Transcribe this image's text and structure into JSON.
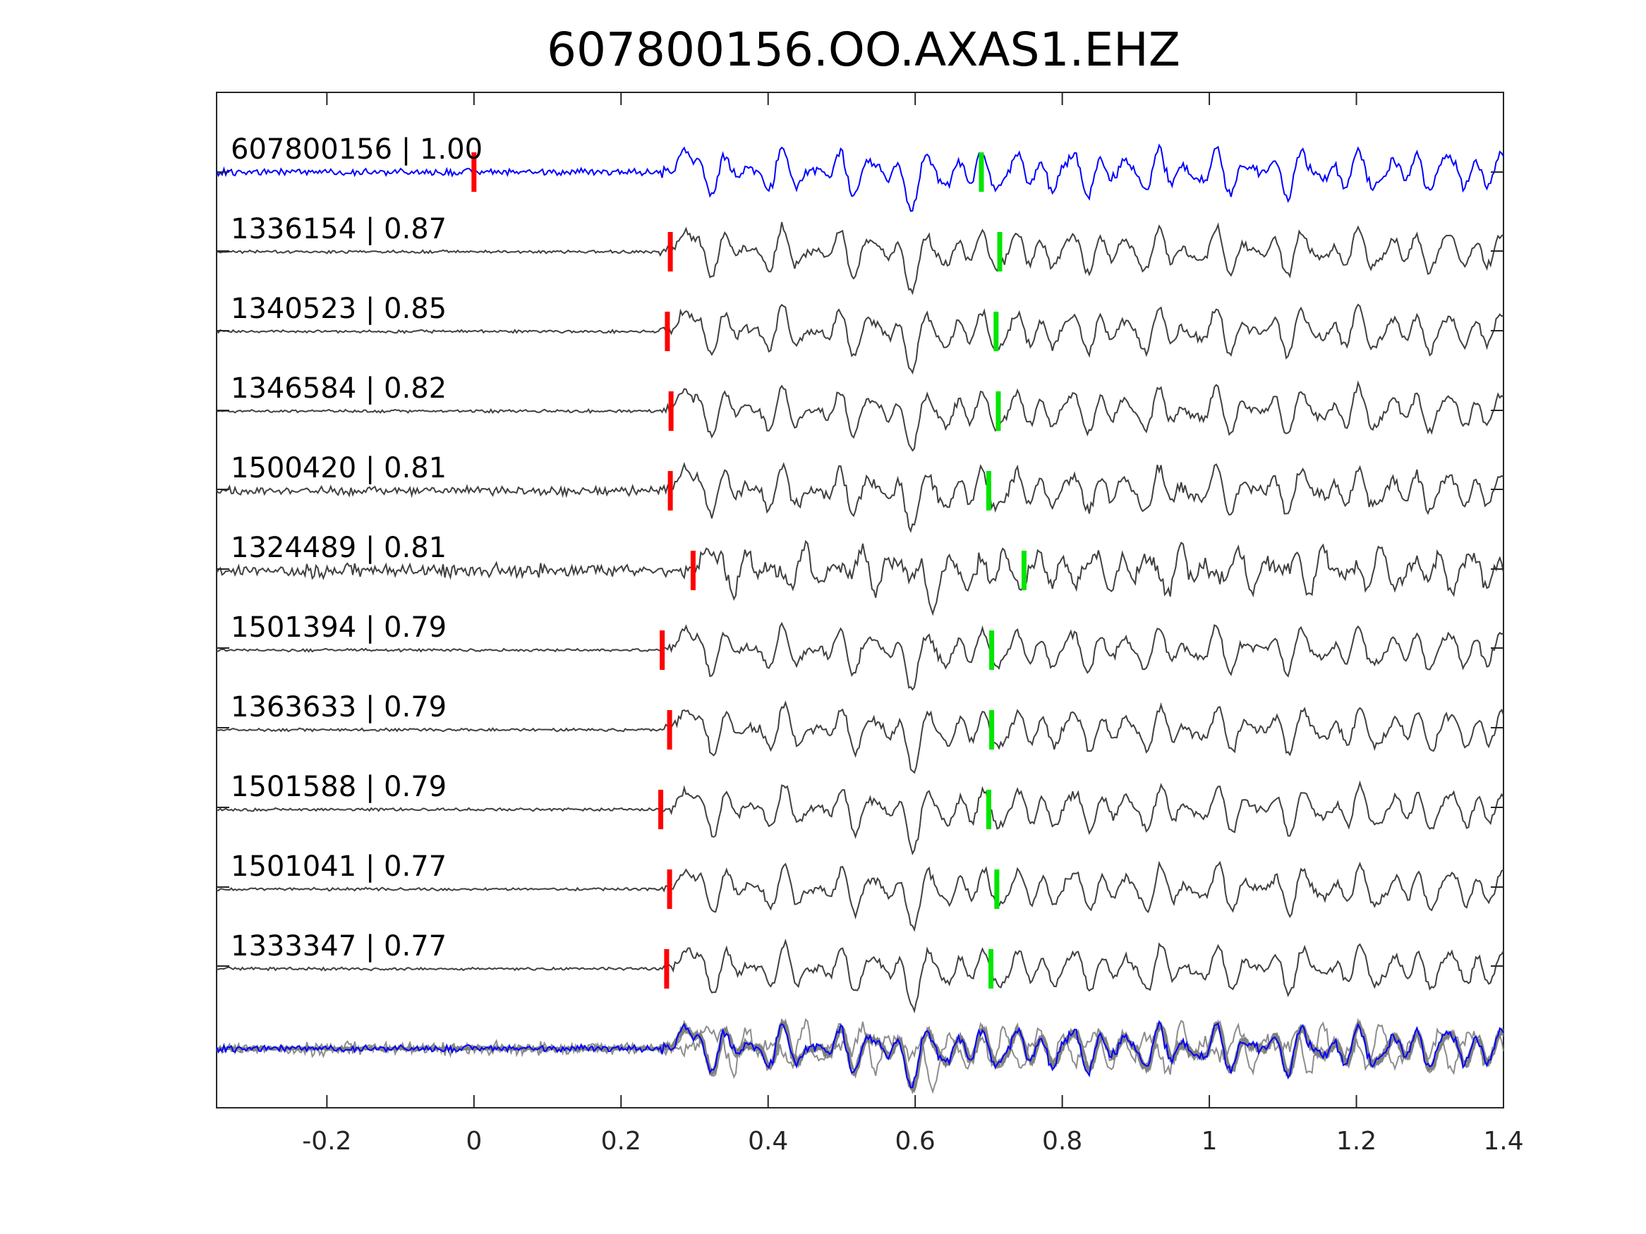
{
  "chart_data": {
    "type": "line",
    "title": "607800156.OO.AXAS1.EHZ",
    "xlabel": "",
    "ylabel": "",
    "xlim": [
      -0.35,
      1.4
    ],
    "xticks": [
      -0.2,
      0,
      0.2,
      0.4,
      0.6,
      0.8,
      1,
      1.2,
      1.4
    ],
    "xtick_labels": [
      "-0.2",
      "0",
      "0.2",
      "0.4",
      "0.6",
      "0.8",
      "1",
      "1.2",
      "1.4"
    ],
    "grid": false,
    "colors": {
      "master": "#0000ff",
      "template": "#404040",
      "stack": "#808080",
      "p_pick": "#ff0000",
      "s_pick": "#00e600",
      "axes": "#262626"
    },
    "series": [
      {
        "name": "607800156 | 1.00",
        "role": "master",
        "p_pick": 0.0,
        "s_pick": 0.69
      },
      {
        "name": "1336154 | 0.87",
        "role": "template",
        "p_pick": 0.267,
        "s_pick": 0.715
      },
      {
        "name": "1340523 | 0.85",
        "role": "template",
        "p_pick": 0.263,
        "s_pick": 0.71
      },
      {
        "name": "1346584 | 0.82",
        "role": "template",
        "p_pick": 0.268,
        "s_pick": 0.713
      },
      {
        "name": "1500420 | 0.81",
        "role": "template",
        "p_pick": 0.267,
        "s_pick": 0.7
      },
      {
        "name": "1324489 | 0.81",
        "role": "template",
        "p_pick": 0.298,
        "s_pick": 0.748
      },
      {
        "name": "1501394 | 0.79",
        "role": "template",
        "p_pick": 0.256,
        "s_pick": 0.704
      },
      {
        "name": "1363633 | 0.79",
        "role": "template",
        "p_pick": 0.266,
        "s_pick": 0.704
      },
      {
        "name": "1501588 | 0.79",
        "role": "template",
        "p_pick": 0.254,
        "s_pick": 0.7
      },
      {
        "name": "1501041 | 0.77",
        "role": "template",
        "p_pick": 0.266,
        "s_pick": 0.711
      },
      {
        "name": "1333347 | 0.77",
        "role": "template",
        "p_pick": 0.262,
        "s_pick": 0.703
      }
    ],
    "stack": {
      "overlay": true,
      "includes_master": true
    }
  }
}
